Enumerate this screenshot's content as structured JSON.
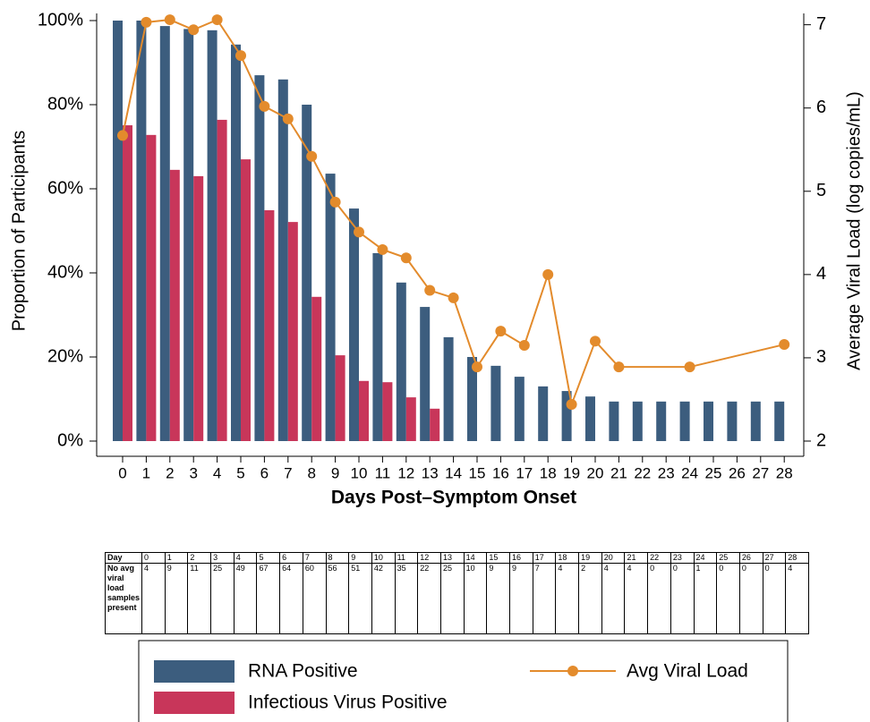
{
  "chart_data": {
    "type": "bar",
    "x_label": "Days Post–Symptom Onset",
    "y_label": "Proportion of Participants",
    "y2_label": "Average Viral Load (log copies/mL)",
    "categories": [
      "0",
      "1",
      "2",
      "3",
      "4",
      "5",
      "6",
      "7",
      "8",
      "9",
      "10",
      "11",
      "12",
      "13",
      "14",
      "15",
      "16",
      "17",
      "18",
      "19",
      "20",
      "21",
      "22",
      "23",
      "24",
      "25",
      "26",
      "27",
      "28"
    ],
    "series": [
      {
        "name": "RNA Positive",
        "color": "#3c5d7e",
        "values": [
          100,
          100,
          98.7,
          98,
          97.7,
          94.3,
          87,
          86,
          80,
          63.6,
          55.3,
          44.7,
          37.7,
          31.9,
          24.7,
          20,
          17.9,
          15.3,
          13,
          11.9,
          10.6,
          9.4,
          9.4,
          9.4,
          9.4,
          9.4,
          9.4,
          9.4,
          9.4
        ]
      },
      {
        "name": "Infectious Virus Positive",
        "color": "#c8365a",
        "values": [
          75.1,
          72.8,
          64.5,
          63,
          76.4,
          67,
          54.9,
          52.1,
          34.3,
          20.4,
          14.3,
          14,
          10.4,
          7.7,
          null,
          null,
          null,
          null,
          null,
          null,
          null,
          null,
          null,
          null,
          null,
          null,
          null,
          null,
          null
        ]
      },
      {
        "name": "Avg Viral Load",
        "color": "#e38b2c",
        "type": "line",
        "axis": "y2",
        "x": [
          0,
          1,
          2,
          3,
          4,
          5,
          6,
          7,
          8,
          9,
          10,
          11,
          12,
          13,
          14,
          15,
          16,
          17,
          18,
          19,
          20,
          21,
          24,
          28
        ],
        "values": [
          5.67,
          7.03,
          7.06,
          6.94,
          7.06,
          6.63,
          6.02,
          5.87,
          5.42,
          4.87,
          4.51,
          4.3,
          4.2,
          3.81,
          3.72,
          2.89,
          3.32,
          3.15,
          4.0,
          2.44,
          3.2,
          2.89,
          2.89,
          3.16
        ]
      }
    ],
    "ylim": [
      0,
      100
    ],
    "yticks": [
      {
        "value": 0,
        "label": "0%"
      },
      {
        "value": 20,
        "label": "20%"
      },
      {
        "value": 40,
        "label": "40%"
      },
      {
        "value": 60,
        "label": "60%"
      },
      {
        "value": 80,
        "label": "80%"
      },
      {
        "value": 100,
        "label": "100%"
      }
    ],
    "y2lim": [
      2,
      7.05
    ],
    "y2ticks": [
      2,
      3,
      4,
      5,
      6,
      7
    ],
    "grid": false
  },
  "table": {
    "columns": [
      "Day",
      0,
      1,
      2,
      3,
      4,
      5,
      6,
      7,
      8,
      9,
      10,
      11,
      12,
      13,
      14,
      15,
      16,
      17,
      18,
      19,
      20,
      21,
      22,
      23,
      24,
      25,
      26,
      27,
      28
    ],
    "rows": [
      [
        "No avg viral load samples present",
        4,
        9,
        11,
        25,
        49,
        67,
        64,
        60,
        56,
        51,
        42,
        35,
        22,
        25,
        10,
        9,
        9,
        7,
        4,
        2,
        4,
        4,
        0,
        0,
        1,
        0,
        0,
        0,
        4
      ]
    ]
  }
}
